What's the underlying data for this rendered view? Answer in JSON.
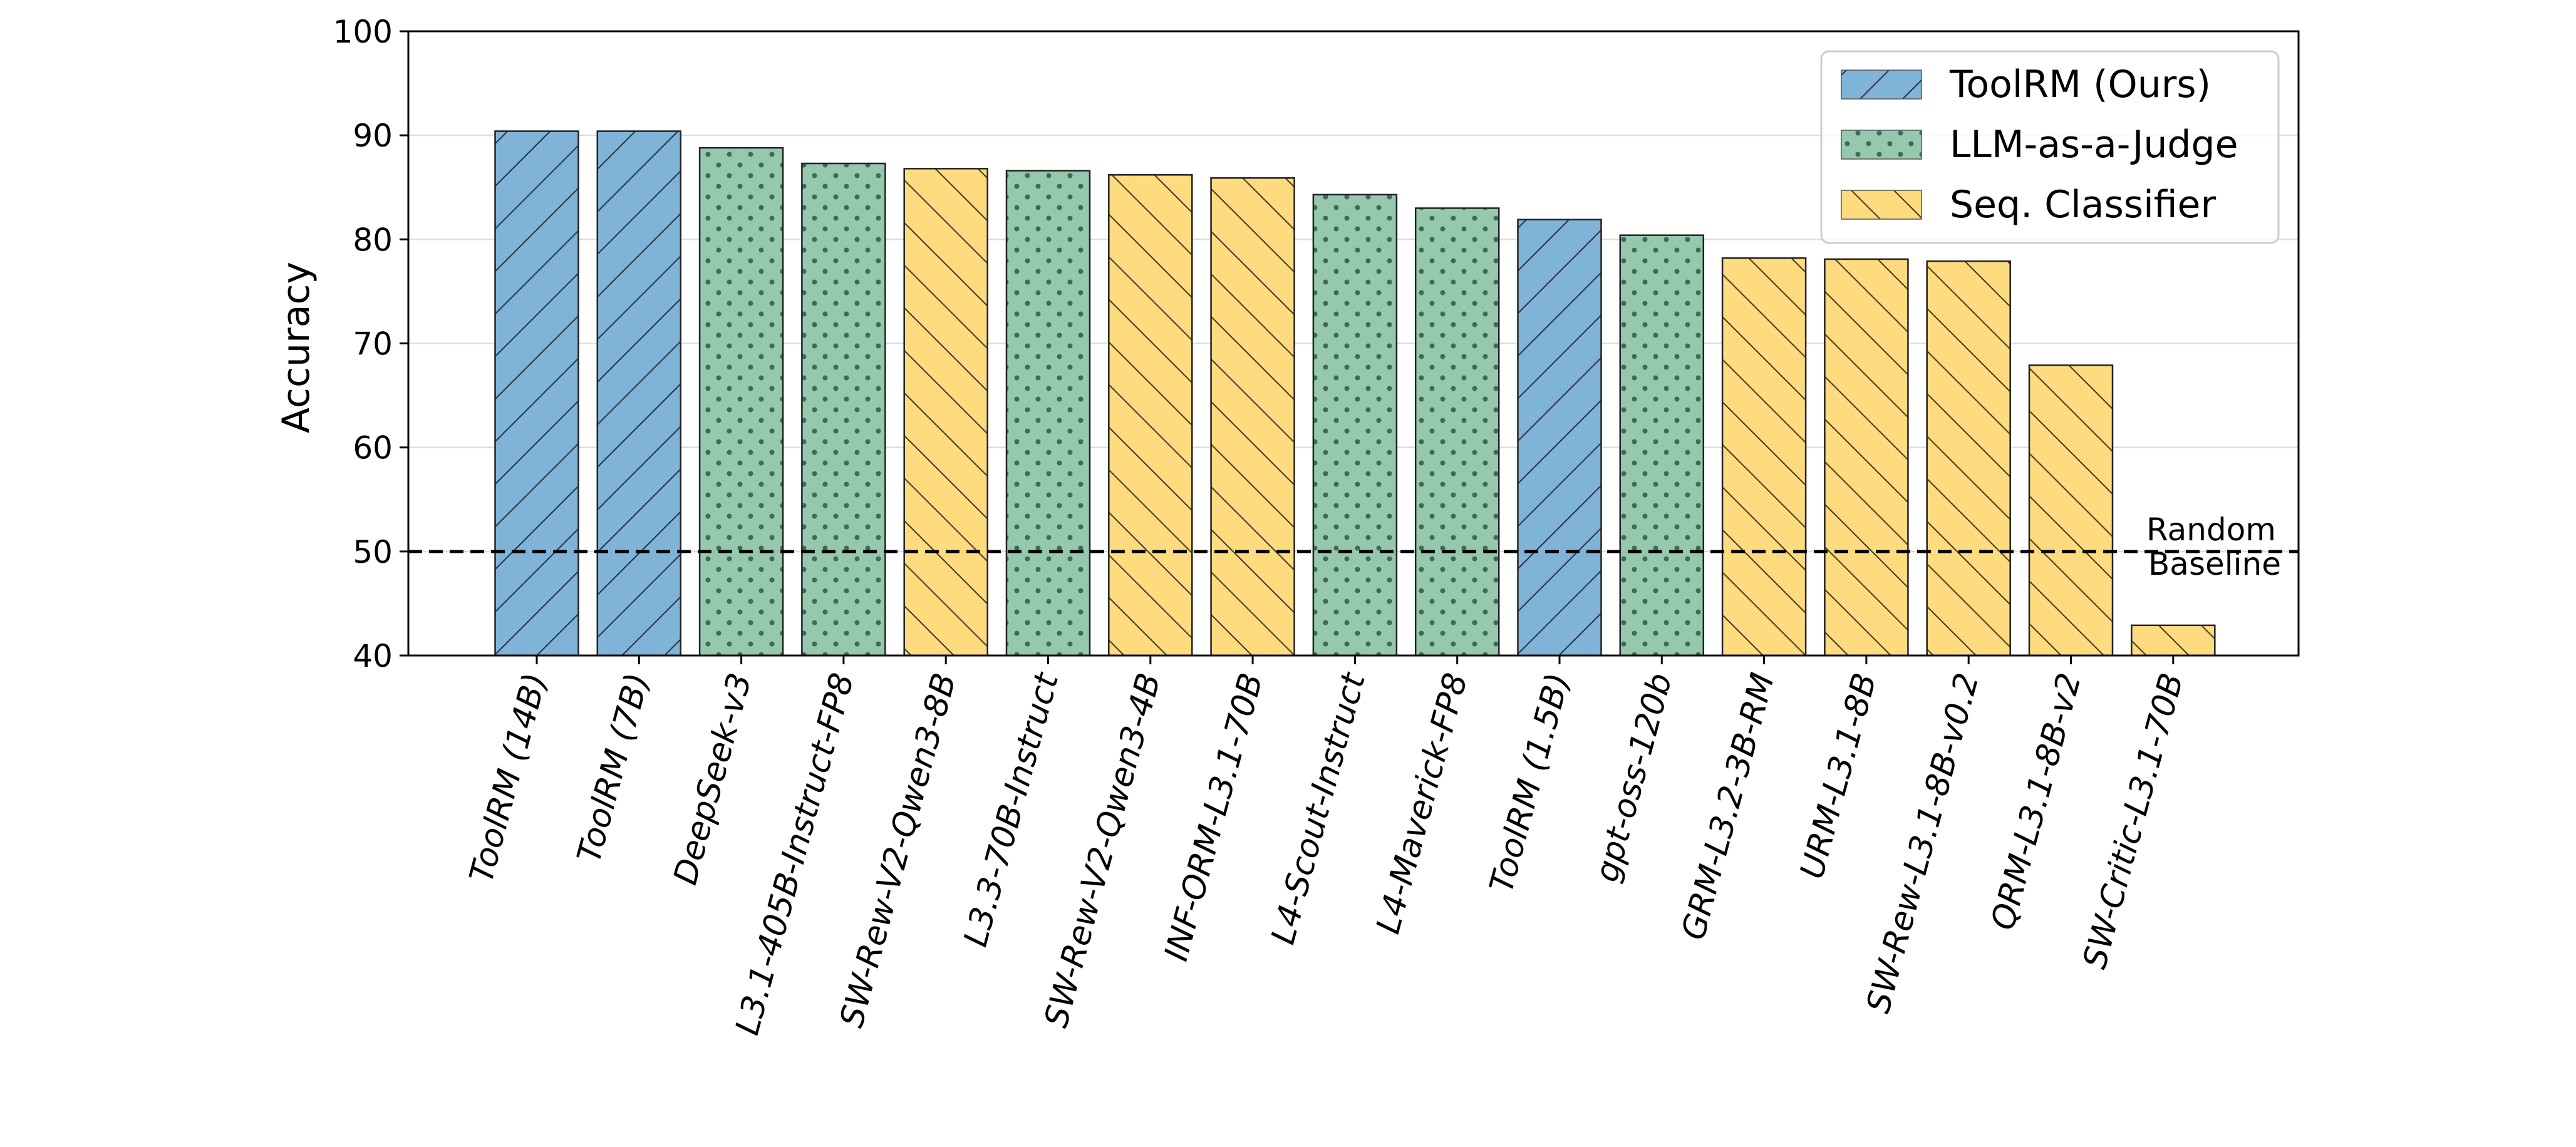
{
  "chart_data": {
    "type": "bar",
    "xlabel": "",
    "ylabel": "Accuracy",
    "ylim": [
      40,
      100
    ],
    "yticks": [
      40,
      50,
      60,
      70,
      80,
      90,
      100
    ],
    "grid": "horizontal",
    "legend_position": "top-right",
    "categories": [
      "ToolRM (14B)",
      "ToolRM (7B)",
      "DeepSeek-v3",
      "L3.1-405B-Instruct-FP8",
      "SW-Rew-V2-Qwen3-8B",
      "L3.3-70B-Instruct",
      "SW-Rew-V2-Qwen3-4B",
      "INF-ORM-L3.1-70B",
      "L4-Scout-Instruct",
      "L4-Maverick-FP8",
      "ToolRM (1.5B)",
      "gpt-oss-120b",
      "GRM-L3.2-3B-RM",
      "URM-L3.1-8B",
      "SW-Rew-L3.1-8B-v0.2",
      "QRM-L3.1-8B-v2",
      "SW-Critic-L3.1-70B"
    ],
    "values": [
      90.4,
      90.4,
      88.8,
      87.3,
      86.8,
      86.6,
      86.2,
      85.9,
      84.3,
      83.0,
      81.9,
      80.4,
      78.2,
      78.1,
      77.9,
      67.9,
      42.9
    ],
    "groups": [
      0,
      0,
      1,
      1,
      2,
      1,
      2,
      2,
      1,
      1,
      0,
      1,
      2,
      2,
      2,
      2,
      2
    ],
    "group_styles": [
      {
        "name": "ToolRM (Ours)",
        "color": "#7fb3d8",
        "hatch": "forward-slash"
      },
      {
        "name": "LLM-as-a-Judge",
        "color": "#96c8ad",
        "hatch": "dots"
      },
      {
        "name": "Seq. Classifier",
        "color": "#fedb7e",
        "hatch": "back-slash"
      }
    ],
    "baseline": {
      "value": 50,
      "label_line1": "Random",
      "label_line2": "Baseline",
      "style": "dashed"
    }
  }
}
